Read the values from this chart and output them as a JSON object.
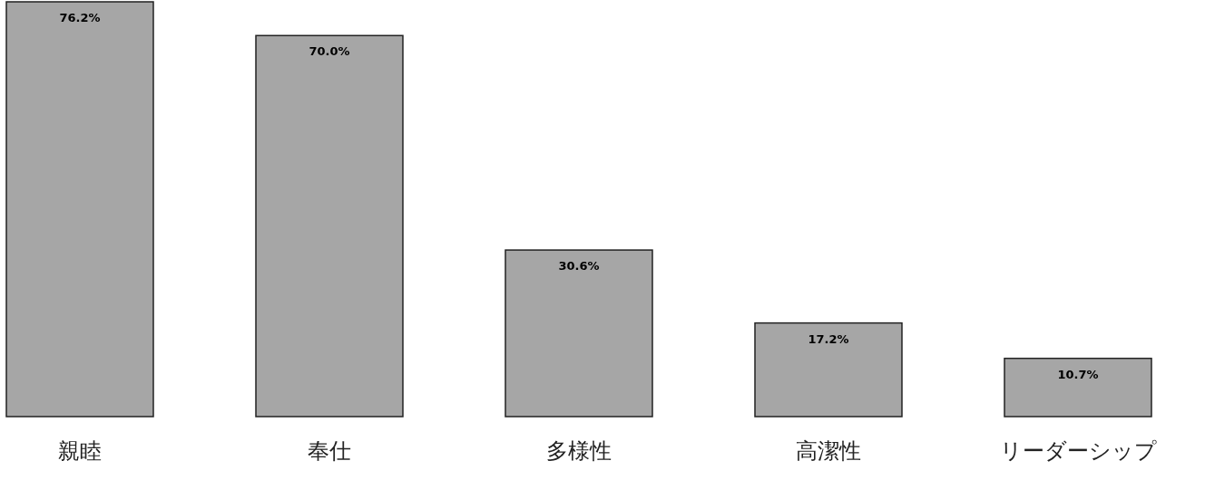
{
  "chart_data": {
    "type": "bar",
    "categories": [
      "親睦",
      "奉仕",
      "多様性",
      "高潔性",
      "リーダーシップ"
    ],
    "values": [
      76.2,
      70.0,
      30.6,
      17.2,
      10.7
    ],
    "value_labels": [
      "76.2%",
      "70.0%",
      "30.6%",
      "17.2%",
      "10.7%"
    ],
    "color": "#a6a6a6"
  }
}
